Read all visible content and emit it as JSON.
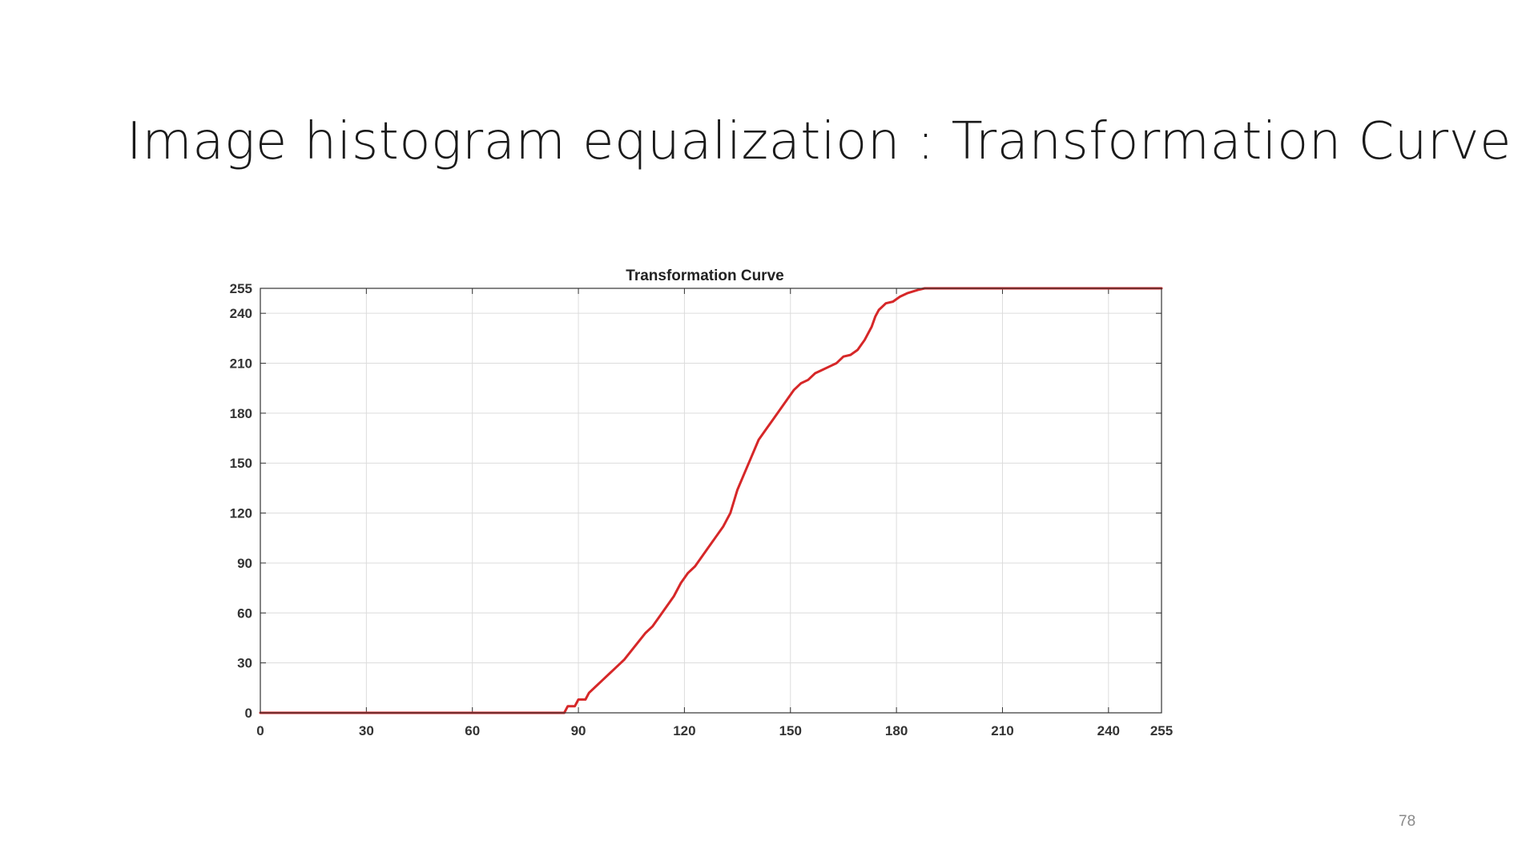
{
  "slide": {
    "title": "Image histogram equalization : Transformation Curve",
    "page_number": "78"
  },
  "chart_data": {
    "type": "line",
    "title": "Transformation Curve",
    "xlabel": "",
    "ylabel": "",
    "xlim": [
      0,
      255
    ],
    "ylim": [
      0,
      255
    ],
    "x_ticks": [
      0,
      30,
      60,
      90,
      120,
      150,
      180,
      210,
      240,
      255
    ],
    "y_ticks": [
      0,
      30,
      60,
      90,
      120,
      150,
      180,
      210,
      240,
      255
    ],
    "grid": true,
    "line_color": "#d62728",
    "series": [
      {
        "points": [
          [
            0,
            0
          ],
          [
            86,
            0
          ],
          [
            87,
            4
          ],
          [
            89,
            4
          ],
          [
            90,
            8
          ],
          [
            92,
            8
          ],
          [
            93,
            12
          ],
          [
            95,
            16
          ],
          [
            97,
            20
          ],
          [
            99,
            24
          ],
          [
            101,
            28
          ],
          [
            103,
            32
          ],
          [
            106,
            40
          ],
          [
            109,
            48
          ],
          [
            111,
            52
          ],
          [
            113,
            58
          ],
          [
            115,
            64
          ],
          [
            117,
            70
          ],
          [
            119,
            78
          ],
          [
            121,
            84
          ],
          [
            123,
            88
          ],
          [
            125,
            94
          ],
          [
            127,
            100
          ],
          [
            129,
            106
          ],
          [
            131,
            112
          ],
          [
            133,
            120
          ],
          [
            135,
            134
          ],
          [
            137,
            144
          ],
          [
            139,
            154
          ],
          [
            141,
            164
          ],
          [
            143,
            170
          ],
          [
            145,
            176
          ],
          [
            147,
            182
          ],
          [
            149,
            188
          ],
          [
            151,
            194
          ],
          [
            153,
            198
          ],
          [
            155,
            200
          ],
          [
            157,
            204
          ],
          [
            159,
            206
          ],
          [
            161,
            208
          ],
          [
            163,
            210
          ],
          [
            165,
            214
          ],
          [
            167,
            215
          ],
          [
            169,
            218
          ],
          [
            171,
            224
          ],
          [
            173,
            232
          ],
          [
            174,
            238
          ],
          [
            175,
            242
          ],
          [
            177,
            246
          ],
          [
            179,
            247
          ],
          [
            181,
            250
          ],
          [
            183,
            252
          ],
          [
            186,
            254
          ],
          [
            188,
            255
          ],
          [
            255,
            255
          ]
        ]
      }
    ]
  }
}
